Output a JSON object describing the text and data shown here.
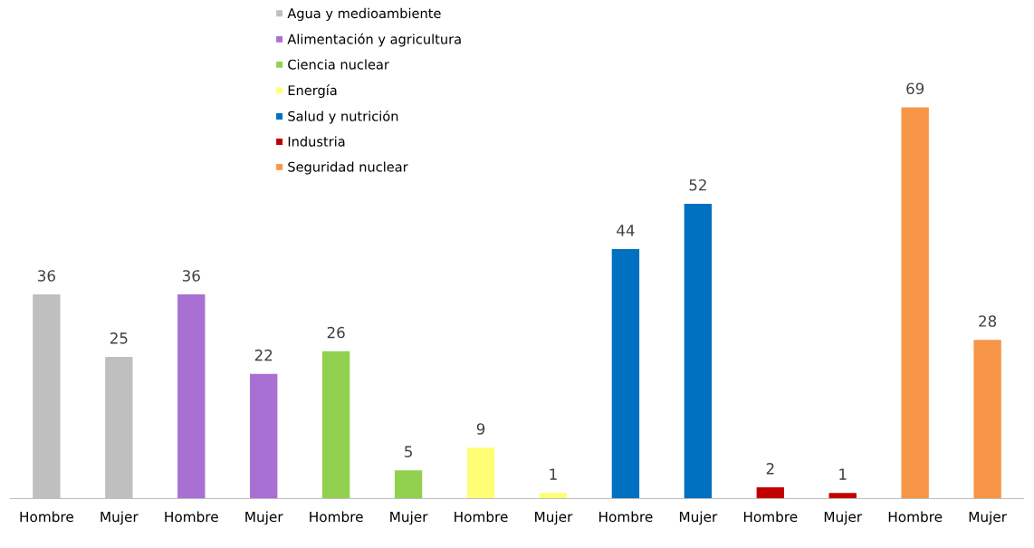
{
  "chart_data": {
    "type": "bar",
    "categories": [
      "Hombre",
      "Mujer",
      "Hombre",
      "Mujer",
      "Hombre",
      "Mujer",
      "Hombre",
      "Mujer",
      "Hombre",
      "Mujer",
      "Hombre",
      "Mujer",
      "Hombre",
      "Mujer"
    ],
    "series": [
      {
        "name": "Agua y medioambiente",
        "color": "#bfbfbf",
        "values": [
          36,
          25,
          null,
          null,
          null,
          null,
          null,
          null,
          null,
          null,
          null,
          null,
          null,
          null
        ]
      },
      {
        "name": "Alimentación y agricultura",
        "color": "#a970d4",
        "values": [
          null,
          null,
          36,
          22,
          null,
          null,
          null,
          null,
          null,
          null,
          null,
          null,
          null,
          null
        ]
      },
      {
        "name": "Ciencia nuclear",
        "color": "#92d050",
        "values": [
          null,
          null,
          null,
          null,
          26,
          5,
          null,
          null,
          null,
          null,
          null,
          null,
          null,
          null
        ]
      },
      {
        "name": "Energía",
        "color": "#ffff75",
        "values": [
          null,
          null,
          null,
          null,
          null,
          null,
          9,
          1,
          null,
          null,
          null,
          null,
          null,
          null
        ]
      },
      {
        "name": "Salud y nutrición",
        "color": "#0070c0",
        "values": [
          null,
          null,
          null,
          null,
          null,
          null,
          null,
          null,
          44,
          52,
          null,
          null,
          null,
          null
        ]
      },
      {
        "name": "Industria",
        "color": "#c00000",
        "values": [
          null,
          null,
          null,
          null,
          null,
          null,
          null,
          null,
          null,
          null,
          2,
          1,
          null,
          null
        ]
      },
      {
        "name": "Seguridad nuclear",
        "color": "#f79646",
        "values": [
          null,
          null,
          null,
          null,
          null,
          null,
          null,
          null,
          null,
          null,
          null,
          null,
          69,
          28
        ]
      }
    ],
    "data_labels": true,
    "legend": "top",
    "grid": false,
    "tick_labels": "x"
  }
}
